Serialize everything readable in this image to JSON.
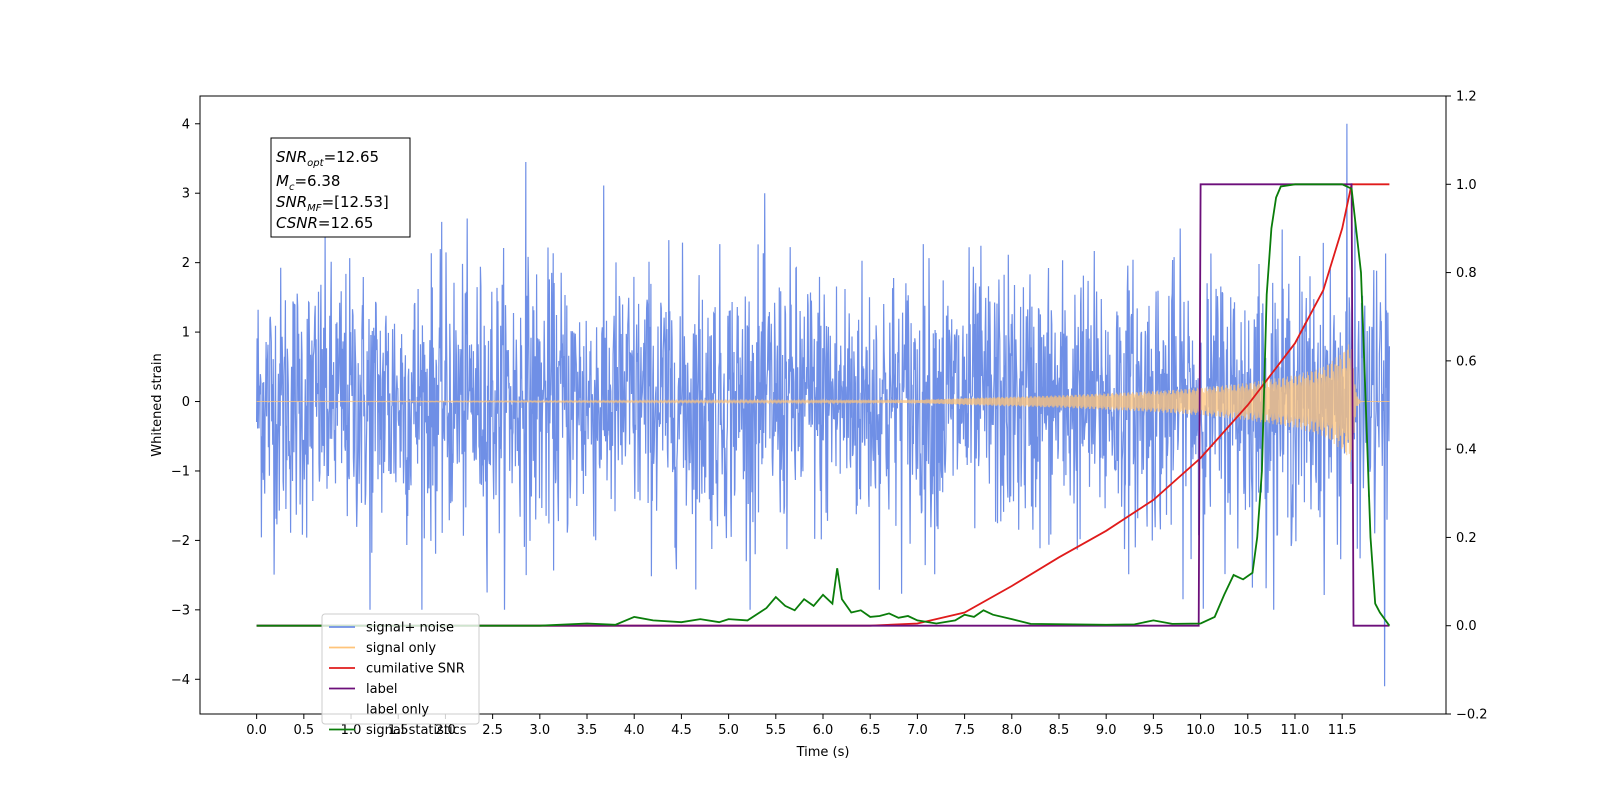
{
  "chart_data": {
    "type": "line",
    "title": "",
    "xlabel": "Time (s)",
    "ylabel": "Whitened strain",
    "xlim": [
      -0.6,
      12.6
    ],
    "ylim": [
      -4.5,
      4.4
    ],
    "y2lim": [
      -0.2,
      1.2
    ],
    "x_ticks": [
      "0.0",
      "0.5",
      "1.0",
      "1.5",
      "2.0",
      "2.5",
      "3.0",
      "3.5",
      "4.0",
      "4.5",
      "5.0",
      "5.5",
      "6.0",
      "6.5",
      "7.0",
      "7.5",
      "8.0",
      "8.5",
      "9.0",
      "9.5",
      "10.0",
      "10.5",
      "11.0",
      "11.5"
    ],
    "y_ticks": [
      "4",
      "3",
      "2",
      "1",
      "0",
      "−1",
      "−2",
      "−3",
      "−4"
    ],
    "y2_ticks": [
      "1.2",
      "1.0",
      "0.8",
      "0.6",
      "0.4",
      "0.2",
      "0.0",
      "−0.2"
    ],
    "grid": false,
    "legend_position": "bottom-left",
    "annotation": {
      "lines": [
        {
          "label": "SNR",
          "sub": "opt",
          "value": "=12.65"
        },
        {
          "label": "M",
          "sub": "c",
          "value": "=6.38"
        },
        {
          "label": "SNR",
          "sub": "MF",
          "value": "=[12.53]"
        },
        {
          "label": "CSNR",
          "sub": "",
          "value": "=12.65"
        }
      ]
    },
    "legend": [
      {
        "name": "signal+ noise",
        "color": "#6f8fe6"
      },
      {
        "name": "signal only",
        "color": "#ffc47a"
      },
      {
        "name": "cumilative SNR",
        "color": "#e01b1b"
      },
      {
        "name": "label",
        "color": "#6c0f7a"
      },
      {
        "name": "label only",
        "color": "#cccccc"
      },
      {
        "name": "signal statistics",
        "color": "#0a7d0a"
      }
    ],
    "series": [
      {
        "name": "signal+ noise",
        "axis": "left",
        "description": "white noise, approx. ±1.8 envelope with spikes up to 4.0",
        "x_range": [
          0.0,
          12.0
        ],
        "noise_amplitude": 1.0,
        "extremes": [
          {
            "x": 11.55,
            "y": 4.0
          },
          {
            "x": 11.95,
            "y": -4.1
          },
          {
            "x": 2.85,
            "y": 3.45
          },
          {
            "x": 1.2,
            "y": -3.0
          }
        ]
      },
      {
        "name": "signal only",
        "axis": "left",
        "description": "chirp with growing amplitude, merger near 11.6 s",
        "envelope": [
          [
            0.0,
            0.0
          ],
          [
            7.0,
            0.02
          ],
          [
            7.5,
            0.05
          ],
          [
            8.0,
            0.07
          ],
          [
            8.5,
            0.09
          ],
          [
            9.0,
            0.12
          ],
          [
            9.5,
            0.15
          ],
          [
            10.0,
            0.2
          ],
          [
            10.5,
            0.27
          ],
          [
            11.0,
            0.38
          ],
          [
            11.3,
            0.5
          ],
          [
            11.5,
            0.7
          ],
          [
            11.6,
            0.9
          ],
          [
            11.65,
            0.1
          ],
          [
            11.7,
            0.0
          ],
          [
            12.0,
            0.0
          ]
        ]
      },
      {
        "name": "cumilative SNR",
        "axis": "right",
        "points": [
          [
            0.0,
            0.0
          ],
          [
            6.5,
            0.0
          ],
          [
            7.0,
            0.005
          ],
          [
            7.5,
            0.03
          ],
          [
            8.0,
            0.09
          ],
          [
            8.5,
            0.155
          ],
          [
            9.0,
            0.215
          ],
          [
            9.5,
            0.285
          ],
          [
            10.0,
            0.38
          ],
          [
            10.5,
            0.5
          ],
          [
            11.0,
            0.64
          ],
          [
            11.3,
            0.76
          ],
          [
            11.5,
            0.9
          ],
          [
            11.6,
            1.0
          ],
          [
            12.0,
            1.0
          ]
        ]
      },
      {
        "name": "label",
        "axis": "right",
        "points": [
          [
            0.0,
            0.0
          ],
          [
            9.98,
            0.0
          ],
          [
            10.0,
            1.0
          ],
          [
            11.6,
            1.0
          ],
          [
            11.62,
            0.0
          ],
          [
            12.0,
            0.0
          ]
        ]
      },
      {
        "name": "signal statistics",
        "axis": "right",
        "points": [
          [
            0.0,
            0.0
          ],
          [
            3.0,
            0.0
          ],
          [
            3.5,
            0.005
          ],
          [
            3.8,
            0.002
          ],
          [
            4.0,
            0.02
          ],
          [
            4.2,
            0.012
          ],
          [
            4.5,
            0.008
          ],
          [
            4.7,
            0.015
          ],
          [
            4.9,
            0.008
          ],
          [
            5.0,
            0.015
          ],
          [
            5.2,
            0.012
          ],
          [
            5.4,
            0.04
          ],
          [
            5.5,
            0.065
          ],
          [
            5.6,
            0.045
          ],
          [
            5.7,
            0.035
          ],
          [
            5.8,
            0.06
          ],
          [
            5.9,
            0.045
          ],
          [
            6.0,
            0.07
          ],
          [
            6.1,
            0.05
          ],
          [
            6.15,
            0.13
          ],
          [
            6.2,
            0.06
          ],
          [
            6.3,
            0.03
          ],
          [
            6.4,
            0.035
          ],
          [
            6.5,
            0.02
          ],
          [
            6.6,
            0.022
          ],
          [
            6.7,
            0.028
          ],
          [
            6.8,
            0.018
          ],
          [
            6.9,
            0.022
          ],
          [
            7.0,
            0.012
          ],
          [
            7.2,
            0.005
          ],
          [
            7.4,
            0.012
          ],
          [
            7.5,
            0.025
          ],
          [
            7.6,
            0.02
          ],
          [
            7.7,
            0.035
          ],
          [
            7.8,
            0.025
          ],
          [
            8.0,
            0.015
          ],
          [
            8.2,
            0.004
          ],
          [
            9.0,
            0.002
          ],
          [
            9.3,
            0.003
          ],
          [
            9.5,
            0.012
          ],
          [
            9.7,
            0.004
          ],
          [
            10.0,
            0.005
          ],
          [
            10.15,
            0.02
          ],
          [
            10.25,
            0.07
          ],
          [
            10.35,
            0.115
          ],
          [
            10.45,
            0.105
          ],
          [
            10.55,
            0.12
          ],
          [
            10.6,
            0.2
          ],
          [
            10.65,
            0.35
          ],
          [
            10.7,
            0.75
          ],
          [
            10.75,
            0.9
          ],
          [
            10.8,
            0.97
          ],
          [
            10.85,
            0.995
          ],
          [
            11.0,
            1.0
          ],
          [
            11.5,
            1.0
          ],
          [
            11.6,
            0.99
          ],
          [
            11.7,
            0.8
          ],
          [
            11.75,
            0.5
          ],
          [
            11.8,
            0.2
          ],
          [
            11.85,
            0.05
          ],
          [
            11.9,
            0.03
          ],
          [
            12.0,
            0.0
          ]
        ]
      }
    ]
  }
}
